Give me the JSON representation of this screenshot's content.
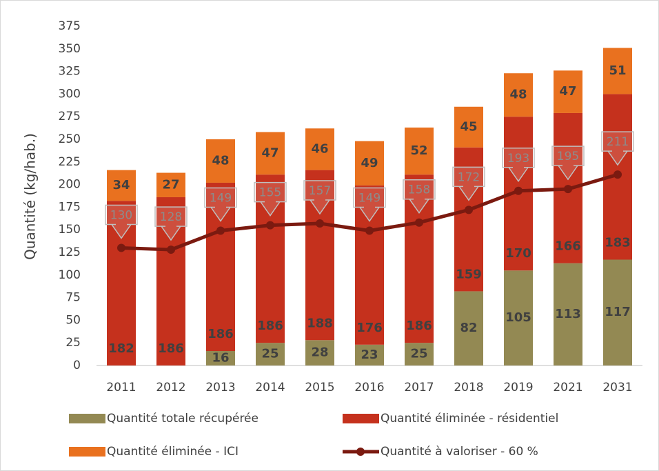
{
  "chart_data": {
    "type": "bar",
    "stacked": true,
    "y_label": "Quantité (kg/hab.)",
    "categories": [
      "2011",
      "2012",
      "2013",
      "2014",
      "2015",
      "2016",
      "2017",
      "2018",
      "2019",
      "2021",
      "2031"
    ],
    "series": [
      {
        "name": "Quantité totale récupérée",
        "type": "bar",
        "color": "#938953",
        "values": [
          null,
          null,
          16,
          25,
          28,
          23,
          25,
          82,
          105,
          113,
          117
        ]
      },
      {
        "name": "Quantité éliminée - résidentiel",
        "type": "bar",
        "color": "#c5311d",
        "values": [
          182,
          186,
          186,
          186,
          188,
          176,
          186,
          159,
          170,
          166,
          183
        ]
      },
      {
        "name": "Quantité éliminée - ICI",
        "type": "bar",
        "color": "#e9711f",
        "values": [
          34,
          27,
          48,
          47,
          46,
          49,
          52,
          45,
          48,
          47,
          51
        ]
      },
      {
        "name": "Quantité à valoriser - 60 %",
        "type": "line",
        "color": "#7b1a10",
        "values": [
          130,
          128,
          149,
          155,
          157,
          149,
          158,
          172,
          193,
          195,
          211
        ]
      }
    ],
    "ylim": [
      0,
      375
    ],
    "yticks": [
      0,
      25,
      50,
      75,
      100,
      125,
      150,
      175,
      200,
      225,
      250,
      275,
      300,
      325,
      350,
      375
    ],
    "grid": false,
    "legend": "bottom"
  }
}
